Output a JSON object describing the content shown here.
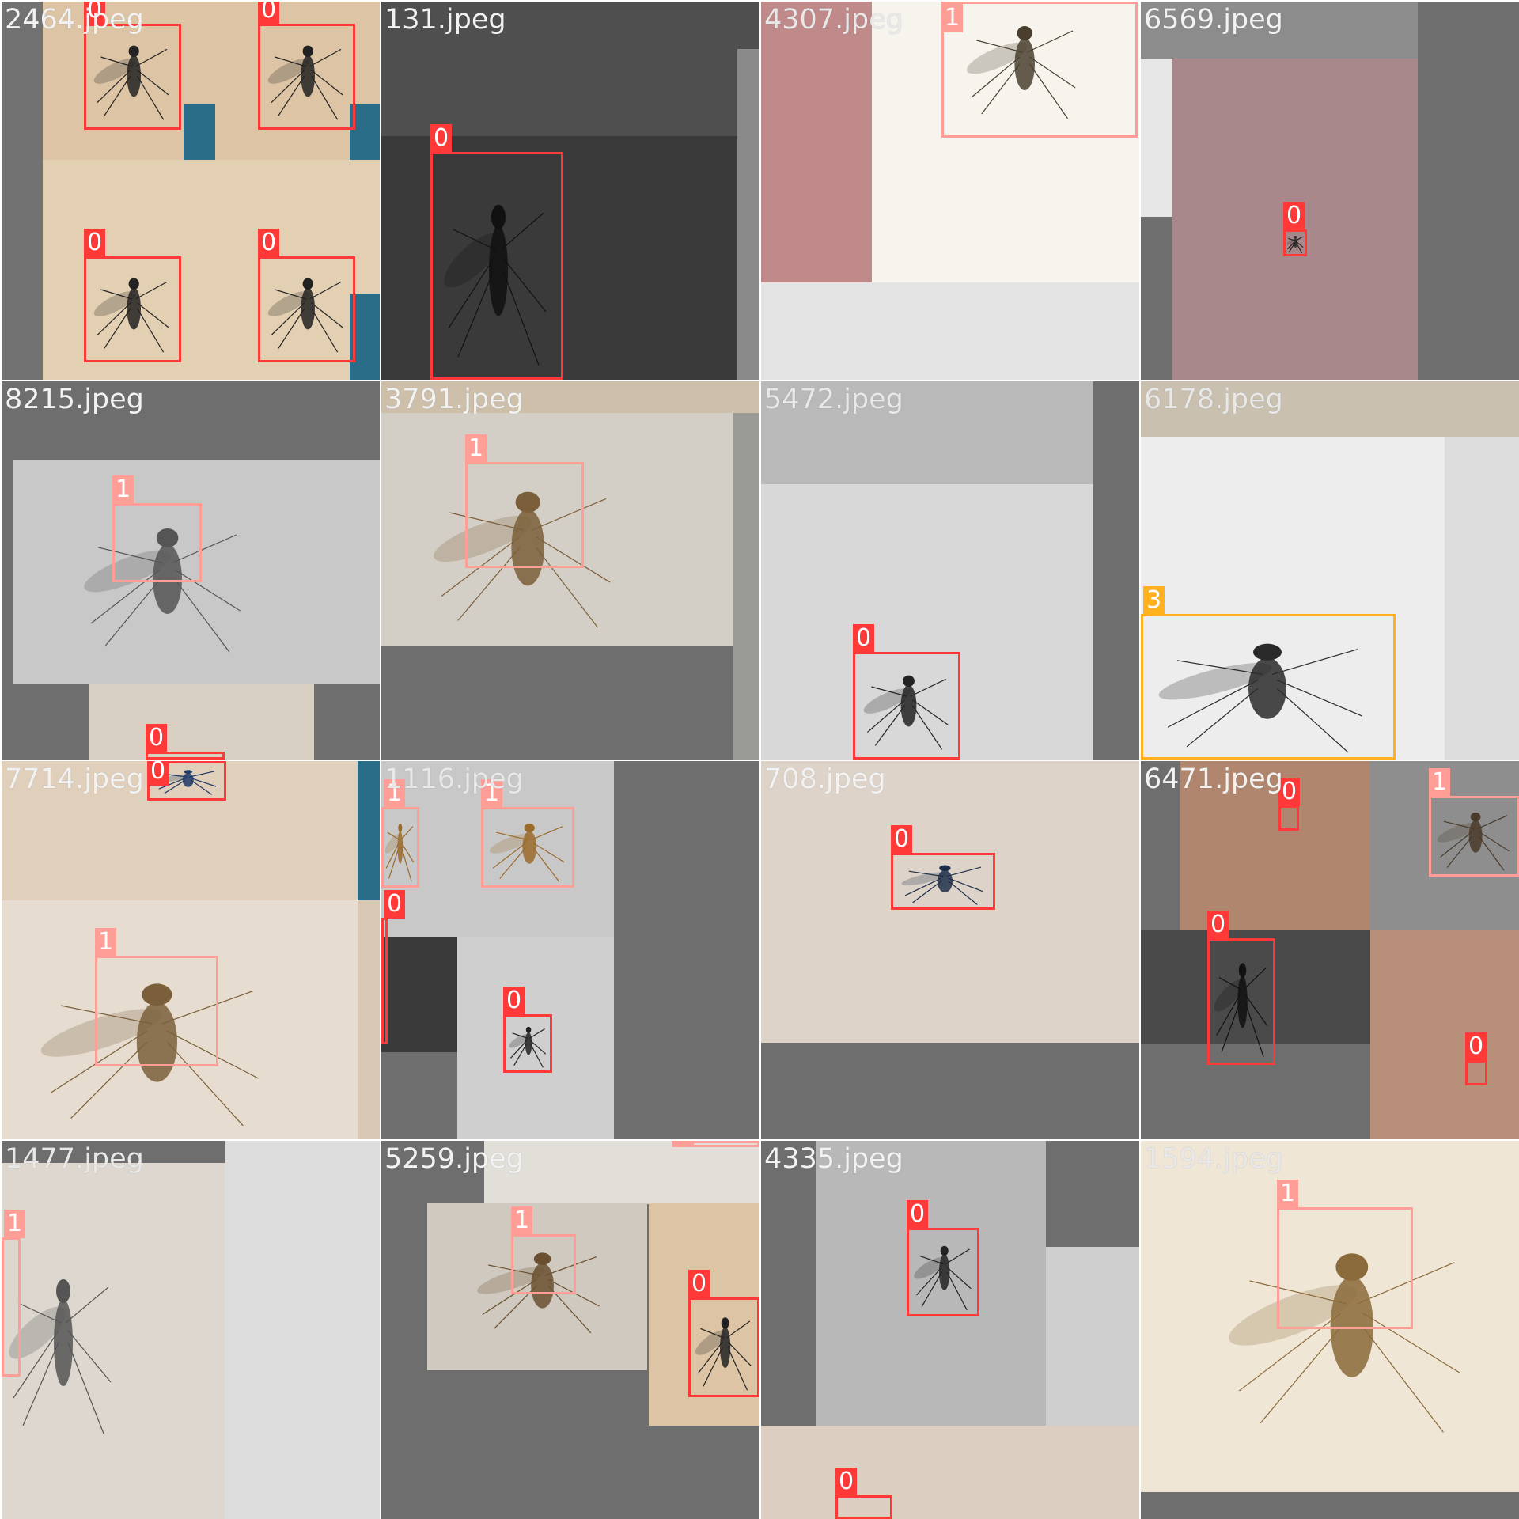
{
  "class_colors": {
    "0": "#ff3838",
    "1": "#ff9d97",
    "3": "#ffb21d"
  },
  "tiles": [
    {
      "filename": "2464.jpeg",
      "labels": [
        "0",
        "0",
        "0",
        "0"
      ]
    },
    {
      "filename": "131.jpeg",
      "labels": [
        "0"
      ]
    },
    {
      "filename": "4307.jpeg",
      "labels": [
        "1"
      ]
    },
    {
      "filename": "6569.jpeg",
      "labels": [
        "0"
      ]
    },
    {
      "filename": "8215.jpeg",
      "labels": [
        "1",
        "0"
      ]
    },
    {
      "filename": "3791.jpeg",
      "labels": [
        "1"
      ]
    },
    {
      "filename": "5472.jpeg",
      "labels": [
        "0"
      ]
    },
    {
      "filename": "6178.jpeg",
      "labels": [
        "3"
      ]
    },
    {
      "filename": "7714.jpeg",
      "labels": [
        "0",
        "1"
      ]
    },
    {
      "filename": "1116.jpeg",
      "labels": [
        "1",
        "1",
        "0",
        "0"
      ]
    },
    {
      "filename": "708.jpeg",
      "labels": [
        "0"
      ]
    },
    {
      "filename": "6471.jpeg",
      "labels": [
        "0",
        "1",
        "0",
        "0"
      ]
    },
    {
      "filename": "1477.jpeg",
      "labels": [
        "1"
      ]
    },
    {
      "filename": "5259.jpeg",
      "labels": [
        "1",
        "1",
        "0"
      ]
    },
    {
      "filename": "4335.jpeg",
      "labels": [
        "0",
        "0"
      ]
    },
    {
      "filename": "1594.jpeg",
      "labels": [
        "1"
      ]
    }
  ]
}
